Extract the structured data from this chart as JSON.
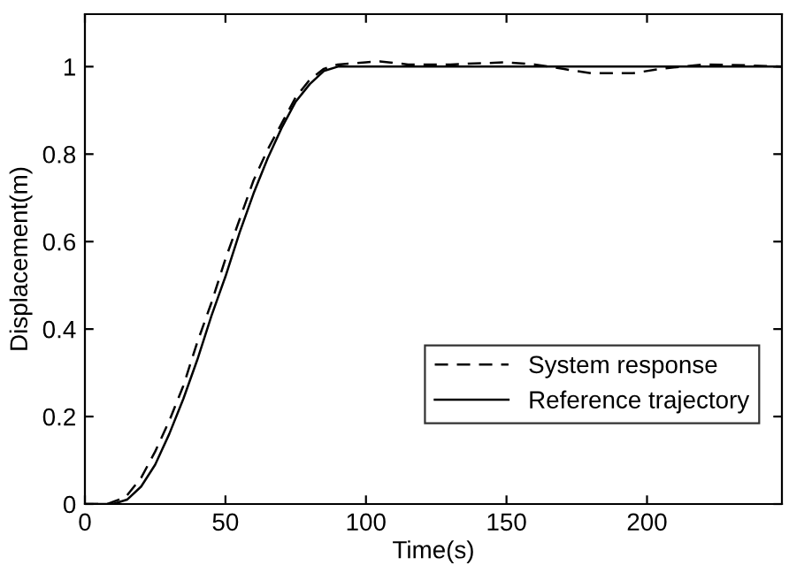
{
  "chart_data": {
    "type": "line",
    "xlabel": "Time(s)",
    "ylabel": "Displacement(m)",
    "xlim": [
      0,
      248
    ],
    "ylim": [
      0,
      1.12
    ],
    "xticks": [
      0,
      50,
      100,
      150,
      200
    ],
    "yticks": [
      0,
      0.2,
      0.4,
      0.6,
      0.8,
      1
    ],
    "grid": false,
    "legend": "bottom right",
    "series": [
      {
        "name": "System response",
        "color": "#000000",
        "line_style": "dashed",
        "x": [
          0,
          8,
          12,
          15,
          20,
          25,
          30,
          35,
          40,
          45,
          50,
          55,
          60,
          65,
          70,
          75,
          80,
          85,
          90,
          100,
          105,
          115,
          130,
          150,
          160,
          170,
          180,
          195,
          205,
          220,
          235,
          248
        ],
        "values": [
          0,
          0,
          0.01,
          0.02,
          0.06,
          0.12,
          0.19,
          0.27,
          0.37,
          0.46,
          0.56,
          0.65,
          0.74,
          0.81,
          0.87,
          0.93,
          0.97,
          0.995,
          1.005,
          1.01,
          1.012,
          1.005,
          1.005,
          1.01,
          1.005,
          0.995,
          0.985,
          0.985,
          0.995,
          1.005,
          1.003,
          1.0
        ]
      },
      {
        "name": "Reference trajectory",
        "color": "#000000",
        "line_style": "solid",
        "x": [
          0,
          10,
          15,
          20,
          25,
          30,
          35,
          40,
          45,
          50,
          55,
          60,
          65,
          70,
          75,
          80,
          85,
          90,
          248
        ],
        "values": [
          0,
          0,
          0.01,
          0.04,
          0.09,
          0.16,
          0.24,
          0.33,
          0.43,
          0.52,
          0.62,
          0.71,
          0.79,
          0.86,
          0.92,
          0.96,
          0.99,
          1,
          1
        ]
      }
    ]
  }
}
